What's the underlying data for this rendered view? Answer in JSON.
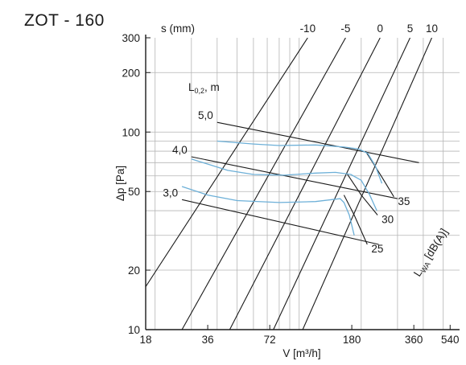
{
  "title": "ZOT - 160",
  "chart_data": {
    "type": "line",
    "log_axes": true,
    "grid": true,
    "xlabel": "V [m³/h]",
    "ylabel": "Δp [Pa]",
    "xlim": [
      18,
      600
    ],
    "ylim": [
      10,
      300
    ],
    "x_ticks": [
      {
        "v": 18,
        "t": "18"
      },
      {
        "v": 36,
        "t": "36"
      },
      {
        "v": 72,
        "t": "72"
      },
      {
        "v": 180,
        "t": "180"
      },
      {
        "v": 360,
        "t": "360"
      },
      {
        "v": 540,
        "t": "540"
      }
    ],
    "y_ticks": [
      {
        "v": 10,
        "t": "10"
      },
      {
        "v": 20,
        "t": "20"
      },
      {
        "v": 50,
        "t": "50"
      },
      {
        "v": 100,
        "t": "100"
      },
      {
        "v": 200,
        "t": "200"
      },
      {
        "v": 300,
        "t": "300"
      }
    ],
    "top_axis": {
      "label": "s (mm)",
      "ticks": [
        {
          "x": 110,
          "t": "-10"
        },
        {
          "x": 168,
          "t": "-5"
        },
        {
          "x": 247,
          "t": "0"
        },
        {
          "x": 345,
          "t": "5"
        },
        {
          "x": 440,
          "t": "10"
        }
      ]
    },
    "throw_label": "L",
    "throw_label_sub": "0,2",
    "throw_label_unit": ", m",
    "sound_axis_label": "L",
    "sound_axis_sub": "WA",
    "sound_axis_unit": " [dB(A)]",
    "setting_lines": [
      {
        "name": "-10",
        "points": [
          [
            18,
            16.5
          ],
          [
            110,
            300
          ]
        ]
      },
      {
        "name": "-5",
        "points": [
          [
            27,
            10
          ],
          [
            168,
            300
          ]
        ]
      },
      {
        "name": "0",
        "points": [
          [
            46,
            10
          ],
          [
            247,
            300
          ]
        ]
      },
      {
        "name": "5",
        "points": [
          [
            75,
            10
          ],
          [
            345,
            300
          ]
        ]
      },
      {
        "name": "10",
        "points": [
          [
            104,
            10
          ],
          [
            440,
            300
          ]
        ]
      }
    ],
    "throw_lines": [
      {
        "label": "5,0",
        "points": [
          [
            40,
            112
          ],
          [
            381,
            70
          ]
        ]
      },
      {
        "label": "4,0",
        "points": [
          [
            30,
            75
          ],
          [
            300,
            46
          ]
        ]
      },
      {
        "label": "3,0",
        "points": [
          [
            27,
            45.5
          ],
          [
            243,
            27
          ]
        ]
      }
    ],
    "sound_lines": [
      {
        "label": "35",
        "points": [
          [
            210,
            80
          ],
          [
            250,
            60
          ],
          [
            288,
            47
          ]
        ]
      },
      {
        "label": "30",
        "points": [
          [
            170,
            62
          ],
          [
            200,
            48
          ],
          [
            240,
            38
          ]
        ]
      },
      {
        "label": "25",
        "points": [
          [
            165,
            48
          ],
          [
            185,
            38
          ],
          [
            214,
            27
          ]
        ]
      }
    ],
    "curve_color": "#6db0d8",
    "curves": [
      {
        "points": [
          [
            40,
            90
          ],
          [
            60,
            87
          ],
          [
            80,
            85.5
          ],
          [
            120,
            86
          ],
          [
            165,
            84
          ],
          [
            195,
            82
          ],
          [
            215,
            78
          ],
          [
            235,
            67
          ],
          [
            252,
            55
          ]
        ]
      },
      {
        "points": [
          [
            30,
            73
          ],
          [
            45,
            64
          ],
          [
            60,
            61
          ],
          [
            85,
            60.5
          ],
          [
            120,
            62
          ],
          [
            150,
            62.5
          ],
          [
            178,
            61
          ],
          [
            200,
            57
          ],
          [
            220,
            48
          ],
          [
            238,
            40
          ]
        ]
      },
      {
        "points": [
          [
            27,
            53
          ],
          [
            36,
            48
          ],
          [
            50,
            45
          ],
          [
            80,
            44
          ],
          [
            120,
            44.5
          ],
          [
            158,
            46
          ],
          [
            165,
            44
          ],
          [
            175,
            38
          ],
          [
            185,
            30
          ]
        ]
      }
    ]
  }
}
